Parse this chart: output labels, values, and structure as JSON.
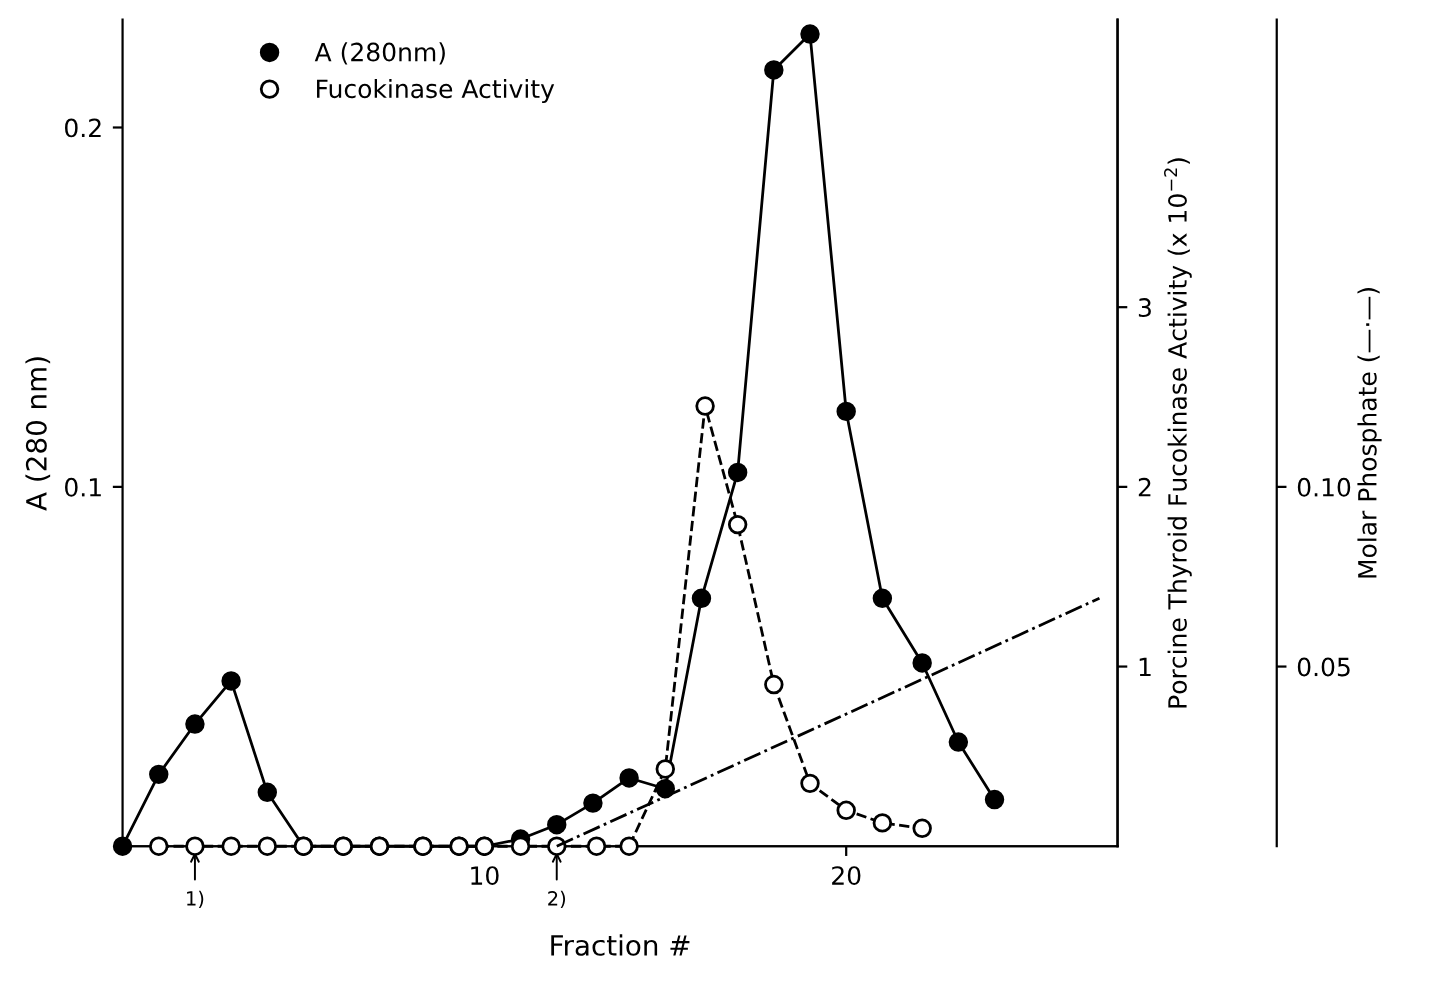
{
  "chart_data": {
    "type": "line",
    "xlabel": "Fraction #",
    "ylabel": "A (280 nm)",
    "y2label": "Porcine Thyroid Fucokinase Activity (x 10$^{−2}$)",
    "y3label": "Molar Phosphate (—·—)",
    "xlim": [
      0,
      27.5
    ],
    "xticks": [
      10,
      20
    ],
    "ylim": [
      0,
      0.23
    ],
    "yticks": [
      0.1,
      0.2
    ],
    "y2lim": [
      0,
      4.6
    ],
    "y2ticks": [
      1,
      2,
      3
    ],
    "y3lim": [
      0,
      0.23
    ],
    "y3ticks": [
      {
        "value": 0.05,
        "label": "0.05"
      },
      {
        "value": 0.1,
        "label": "0.10"
      }
    ],
    "series": [
      {
        "name": "A (280nm)",
        "color": "#000000",
        "marker": "circle",
        "line_style": "solid",
        "x": [
          0,
          1,
          2,
          3,
          4,
          5,
          6.1,
          7.1,
          8.3,
          9.3,
          10,
          11,
          12,
          13,
          14,
          15,
          16,
          17,
          18,
          19,
          20,
          21,
          22.1,
          23.1,
          24.1
        ],
        "values": [
          0,
          0.02,
          0.034,
          0.046,
          0.015,
          0,
          0,
          0,
          0,
          0,
          0,
          0.002,
          0.006,
          0.012,
          0.019,
          0.016,
          0.069,
          0.104,
          0.216,
          0.226,
          0.121,
          0.069,
          0.051,
          0.029,
          0.013
        ]
      },
      {
        "name": "Fucokinase Activity",
        "color": "#000000",
        "marker": "circle",
        "line_style": "dashed",
        "axis": "y2",
        "x": [
          1,
          2,
          3,
          4,
          5,
          6.1,
          7.1,
          8.3,
          9.3,
          10,
          11,
          12,
          13.1,
          14,
          15,
          16.1,
          17,
          18,
          19,
          20,
          21,
          22.1
        ],
        "values": [
          0,
          0,
          0,
          0,
          0,
          0,
          0,
          0,
          0,
          0,
          0,
          0,
          0,
          0,
          0.43,
          2.45,
          1.79,
          0.9,
          0.35,
          0.2,
          0.13,
          0.1
        ]
      },
      {
        "color": "#000000",
        "marker": "none",
        "line_style": "dashdot",
        "axis": "y3",
        "x": [
          12,
          27
        ],
        "values": [
          0,
          0.069
        ]
      }
    ],
    "annotations": [
      {
        "text": "1)",
        "x": 2,
        "y": 0
      },
      {
        "text": "2)",
        "x": 12,
        "y": 0
      }
    ],
    "legend": "top left"
  }
}
